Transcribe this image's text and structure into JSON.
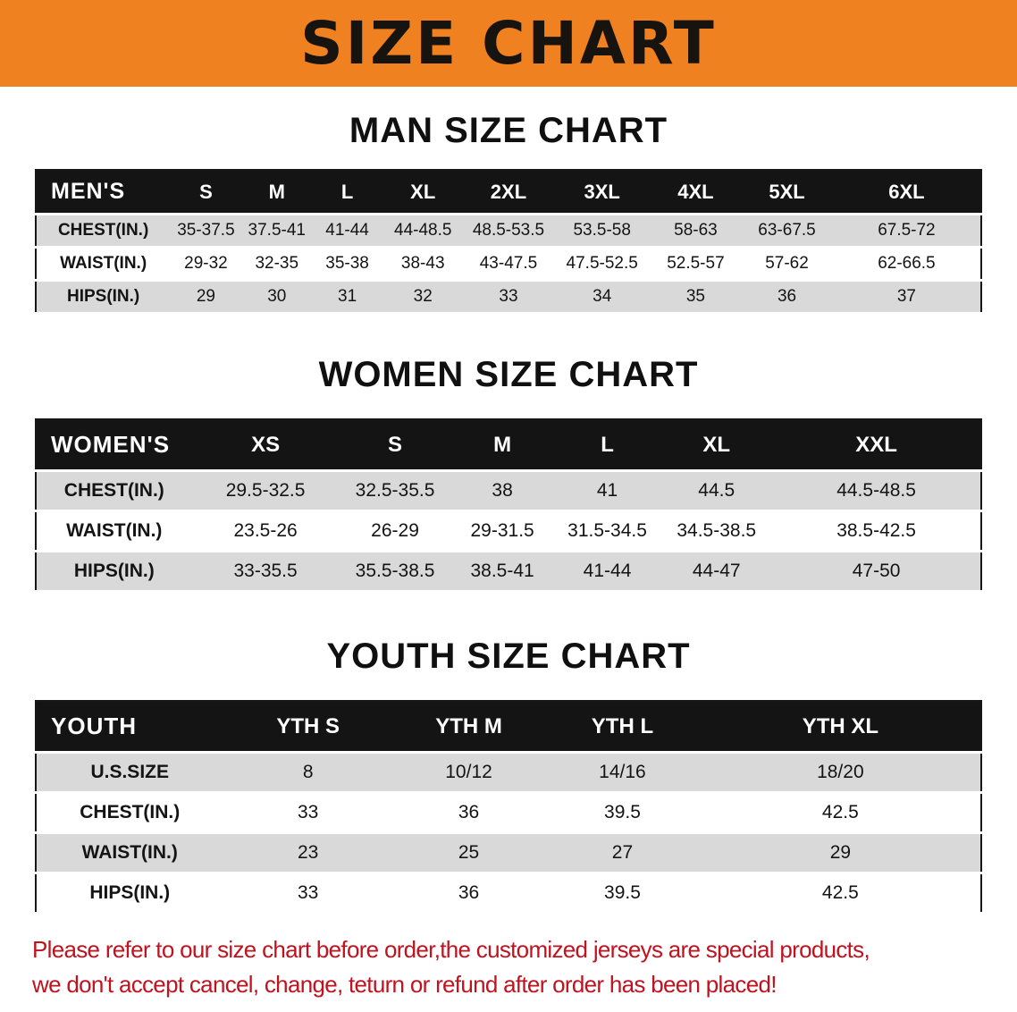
{
  "banner": {
    "title": "SIZE CHART"
  },
  "colors": {
    "banner-bg": "#f08121",
    "header-bg": "#141414",
    "row-gray": "#d9d9d9",
    "table-border": "#161616",
    "disclaimer-red": "#c0121f"
  },
  "sections": [
    {
      "heading": "MAN SIZE CHART",
      "table": {
        "header_label": "MEN'S",
        "sizes": [
          "S",
          "M",
          "L",
          "XL",
          "2XL",
          "3XL",
          "4XL",
          "5XL",
          "6XL"
        ],
        "rows": [
          {
            "label": "CHEST(IN.)",
            "values": [
              "35-37.5",
              "37.5-41",
              "41-44",
              "44-48.5",
              "48.5-53.5",
              "53.5-58",
              "58-63",
              "63-67.5",
              "67.5-72"
            ]
          },
          {
            "label": "WAIST(IN.)",
            "values": [
              "29-32",
              "32-35",
              "35-38",
              "38-43",
              "43-47.5",
              "47.5-52.5",
              "52.5-57",
              "57-62",
              "62-66.5"
            ]
          },
          {
            "label": "HIPS(IN.)",
            "values": [
              "29",
              "30",
              "31",
              "32",
              "33",
              "34",
              "35",
              "36",
              "37"
            ]
          }
        ]
      }
    },
    {
      "heading": "WOMEN SIZE CHART",
      "table": {
        "header_label": "WOMEN'S",
        "sizes": [
          "XS",
          "S",
          "M",
          "L",
          "XL",
          "XXL"
        ],
        "rows": [
          {
            "label": "CHEST(IN.)",
            "values": [
              "29.5-32.5",
              "32.5-35.5",
              "38",
              "41",
              "44.5",
              "44.5-48.5"
            ]
          },
          {
            "label": "WAIST(IN.)",
            "values": [
              "23.5-26",
              "26-29",
              "29-31.5",
              "31.5-34.5",
              "34.5-38.5",
              "38.5-42.5"
            ]
          },
          {
            "label": "HIPS(IN.)",
            "values": [
              "33-35.5",
              "35.5-38.5",
              "38.5-41",
              "41-44",
              "44-47",
              "47-50"
            ]
          }
        ]
      }
    },
    {
      "heading": "YOUTH SIZE CHART",
      "table": {
        "header_label": "YOUTH",
        "sizes": [
          "YTH S",
          "YTH M",
          "YTH L",
          "YTH XL"
        ],
        "rows": [
          {
            "label": "U.S.SIZE",
            "values": [
              "8",
              "10/12",
              "14/16",
              "18/20"
            ]
          },
          {
            "label": "CHEST(IN.)",
            "values": [
              "33",
              "36",
              "39.5",
              "42.5"
            ]
          },
          {
            "label": "WAIST(IN.)",
            "values": [
              "23",
              "25",
              "27",
              "29"
            ]
          },
          {
            "label": "HIPS(IN.)",
            "values": [
              "33",
              "36",
              "39.5",
              "42.5"
            ]
          }
        ]
      }
    }
  ],
  "disclaimer": {
    "line1": "Please refer to our size chart before order,the customized jerseys are special products,",
    "line2": "we don't accept cancel, change, teturn or refund after order has been placed!"
  }
}
